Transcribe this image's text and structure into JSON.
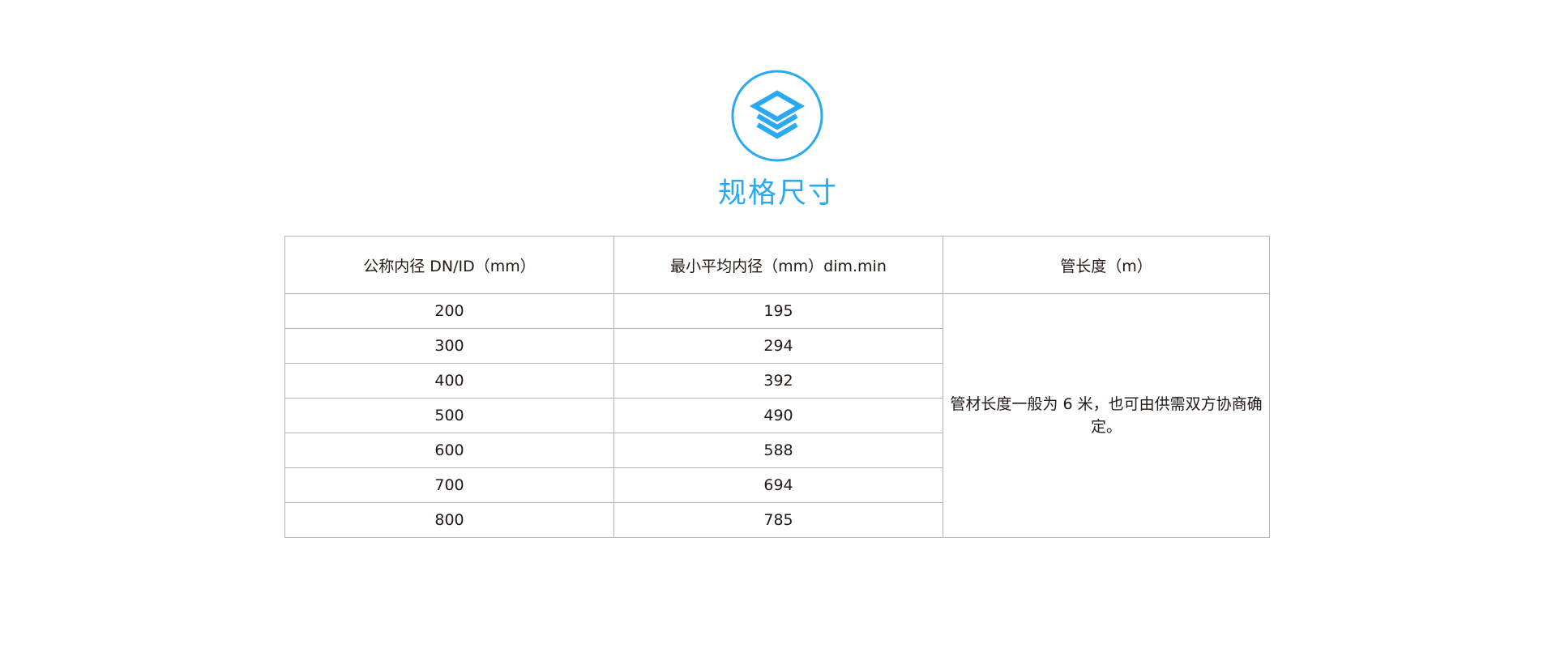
{
  "section": {
    "title": "规格尺寸",
    "icon": "layers-icon",
    "accent_color": "#2aa8f2"
  },
  "table": {
    "headers": [
      "公称内径 DN/ID（mm）",
      "最小平均内径（mm）dim.min",
      "管长度（m）"
    ],
    "rows": [
      [
        "200",
        "195"
      ],
      [
        "300",
        "294"
      ],
      [
        "400",
        "392"
      ],
      [
        "500",
        "490"
      ],
      [
        "600",
        "588"
      ],
      [
        "700",
        "694"
      ],
      [
        "800",
        "785"
      ]
    ],
    "length_note": "管材长度一般为 6 米，也可由供需双方协商确定。"
  }
}
